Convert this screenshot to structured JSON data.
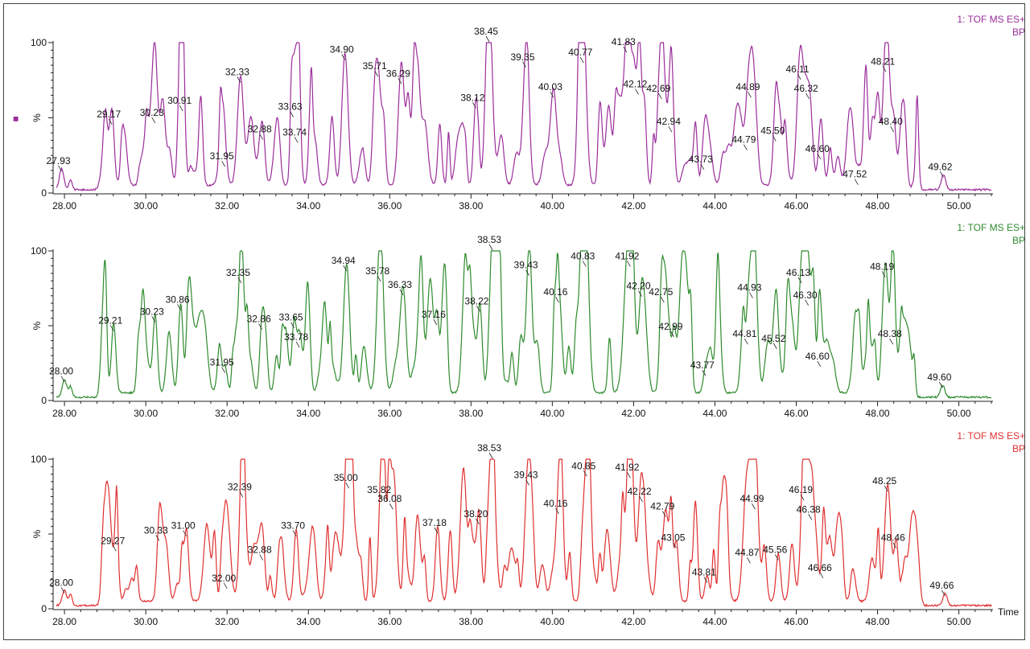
{
  "chart_data": [
    {
      "type": "line",
      "color": "#9b2e9b",
      "header": [
        "1: TOF MS ES+",
        "BP"
      ],
      "ylabel": "%",
      "xlim": [
        27.8,
        50.8
      ],
      "ylim": [
        0,
        100
      ],
      "yticks": [
        "0",
        "100"
      ],
      "xticks": [
        "28.00",
        "30.00",
        "32.00",
        "34.00",
        "36.00",
        "38.00",
        "40.00",
        "42.00",
        "44.00",
        "46.00",
        "48.00",
        "50.00"
      ],
      "xtick_values": [
        28,
        30,
        32,
        34,
        36,
        38,
        40,
        42,
        44,
        46,
        48,
        50
      ],
      "marker": "■",
      "peaks": [
        {
          "label": "27.93",
          "x": 27.93,
          "y": 14
        },
        {
          "label": "29.17",
          "x": 29.17,
          "y": 45
        },
        {
          "label": "30.23",
          "x": 30.23,
          "y": 46
        },
        {
          "label": "30.91",
          "x": 30.91,
          "y": 54
        },
        {
          "label": "31.95",
          "x": 31.95,
          "y": 17
        },
        {
          "label": "32.33",
          "x": 32.33,
          "y": 73
        },
        {
          "label": "32.88",
          "x": 32.88,
          "y": 35
        },
        {
          "label": "33.63",
          "x": 33.63,
          "y": 50
        },
        {
          "label": "33.74",
          "x": 33.74,
          "y": 33
        },
        {
          "label": "34.90",
          "x": 34.9,
          "y": 88
        },
        {
          "label": "35.71",
          "x": 35.71,
          "y": 77
        },
        {
          "label": "36.29",
          "x": 36.29,
          "y": 72
        },
        {
          "label": "38.12",
          "x": 38.12,
          "y": 56
        },
        {
          "label": "38.45",
          "x": 38.45,
          "y": 100
        },
        {
          "label": "39.35",
          "x": 39.35,
          "y": 83
        },
        {
          "label": "40.03",
          "x": 40.03,
          "y": 63
        },
        {
          "label": "40.77",
          "x": 40.77,
          "y": 86
        },
        {
          "label": "41.83",
          "x": 41.83,
          "y": 93
        },
        {
          "label": "42.12",
          "x": 42.12,
          "y": 65
        },
        {
          "label": "42.69",
          "x": 42.69,
          "y": 62
        },
        {
          "label": "42.94",
          "x": 42.94,
          "y": 40
        },
        {
          "label": "43.73",
          "x": 43.73,
          "y": 15
        },
        {
          "label": "44.79",
          "x": 44.79,
          "y": 28
        },
        {
          "label": "44.89",
          "x": 44.89,
          "y": 63
        },
        {
          "label": "45.50",
          "x": 45.5,
          "y": 34
        },
        {
          "label": "46.11",
          "x": 46.11,
          "y": 75
        },
        {
          "label": "46.32",
          "x": 46.32,
          "y": 62
        },
        {
          "label": "46.60",
          "x": 46.6,
          "y": 22
        },
        {
          "label": "47.52",
          "x": 47.52,
          "y": 5
        },
        {
          "label": "48.21",
          "x": 48.21,
          "y": 80
        },
        {
          "label": "48.40",
          "x": 48.4,
          "y": 40
        },
        {
          "label": "49.62",
          "x": 49.62,
          "y": 10
        }
      ]
    },
    {
      "type": "line",
      "color": "#2e8b2e",
      "header": [
        "1: TOF MS ES+",
        "BP"
      ],
      "ylabel": "%",
      "xlim": [
        27.8,
        50.8
      ],
      "ylim": [
        0,
        100
      ],
      "yticks": [
        "0",
        "100"
      ],
      "xticks": [
        "28.00",
        "30.00",
        "32.00",
        "34.00",
        "36.00",
        "38.00",
        "40.00",
        "42.00",
        "44.00",
        "46.00",
        "48.00",
        "50.00"
      ],
      "xtick_values": [
        28,
        30,
        32,
        34,
        36,
        38,
        40,
        42,
        44,
        46,
        48,
        50
      ],
      "peaks": [
        {
          "label": "28.00",
          "x": 28.0,
          "y": 12
        },
        {
          "label": "29.21",
          "x": 29.21,
          "y": 46
        },
        {
          "label": "30.23",
          "x": 30.23,
          "y": 52
        },
        {
          "label": "30.86",
          "x": 30.86,
          "y": 60
        },
        {
          "label": "31.95",
          "x": 31.95,
          "y": 18
        },
        {
          "label": "32.35",
          "x": 32.35,
          "y": 78
        },
        {
          "label": "32.86",
          "x": 32.86,
          "y": 47
        },
        {
          "label": "33.65",
          "x": 33.65,
          "y": 48
        },
        {
          "label": "33.78",
          "x": 33.78,
          "y": 35
        },
        {
          "label": "34.94",
          "x": 34.94,
          "y": 86
        },
        {
          "label": "35.78",
          "x": 35.78,
          "y": 79
        },
        {
          "label": "36.33",
          "x": 36.33,
          "y": 70
        },
        {
          "label": "37.16",
          "x": 37.16,
          "y": 50
        },
        {
          "label": "38.22",
          "x": 38.22,
          "y": 59
        },
        {
          "label": "38.53",
          "x": 38.53,
          "y": 100
        },
        {
          "label": "39.43",
          "x": 39.43,
          "y": 83
        },
        {
          "label": "40.16",
          "x": 40.16,
          "y": 65
        },
        {
          "label": "40.83",
          "x": 40.83,
          "y": 89
        },
        {
          "label": "41.92",
          "x": 41.92,
          "y": 89
        },
        {
          "label": "42.20",
          "x": 42.2,
          "y": 69
        },
        {
          "label": "42.75",
          "x": 42.75,
          "y": 65
        },
        {
          "label": "42.99",
          "x": 42.99,
          "y": 42
        },
        {
          "label": "43.77",
          "x": 43.77,
          "y": 16
        },
        {
          "label": "44.81",
          "x": 44.81,
          "y": 37
        },
        {
          "label": "44.93",
          "x": 44.93,
          "y": 68
        },
        {
          "label": "45.52",
          "x": 45.52,
          "y": 34
        },
        {
          "label": "46.13",
          "x": 46.13,
          "y": 78
        },
        {
          "label": "46.30",
          "x": 46.3,
          "y": 63
        },
        {
          "label": "46.60",
          "x": 46.6,
          "y": 22
        },
        {
          "label": "48.19",
          "x": 48.19,
          "y": 82
        },
        {
          "label": "48.38",
          "x": 48.38,
          "y": 37
        },
        {
          "label": "49.60",
          "x": 49.6,
          "y": 8
        }
      ]
    },
    {
      "type": "line",
      "color": "#e03030",
      "header": [
        "1: TOF MS ES+",
        "BP"
      ],
      "ylabel": "%",
      "xlabel": "Time",
      "xlim": [
        27.8,
        50.8
      ],
      "ylim": [
        0,
        100
      ],
      "yticks": [
        "0",
        "100"
      ],
      "xticks": [
        "28.00",
        "30.00",
        "32.00",
        "34.00",
        "36.00",
        "38.00",
        "40.00",
        "42.00",
        "44.00",
        "46.00",
        "48.00",
        "50.00"
      ],
      "xtick_values": [
        28,
        30,
        32,
        34,
        36,
        38,
        40,
        42,
        44,
        46,
        48,
        50
      ],
      "peaks": [
        {
          "label": "28.00",
          "x": 28.0,
          "y": 10
        },
        {
          "label": "29.27",
          "x": 29.27,
          "y": 38
        },
        {
          "label": "30.33",
          "x": 30.33,
          "y": 45
        },
        {
          "label": "31.00",
          "x": 31.0,
          "y": 48
        },
        {
          "label": "32.00",
          "x": 32.0,
          "y": 13
        },
        {
          "label": "32.39",
          "x": 32.39,
          "y": 74
        },
        {
          "label": "32.88",
          "x": 32.88,
          "y": 32
        },
        {
          "label": "33.70",
          "x": 33.7,
          "y": 48
        },
        {
          "label": "35.00",
          "x": 35.0,
          "y": 80
        },
        {
          "label": "35.82",
          "x": 35.82,
          "y": 72
        },
        {
          "label": "36.08",
          "x": 36.08,
          "y": 66
        },
        {
          "label": "37.18",
          "x": 37.18,
          "y": 50
        },
        {
          "label": "38.20",
          "x": 38.2,
          "y": 56
        },
        {
          "label": "38.53",
          "x": 38.53,
          "y": 100
        },
        {
          "label": "39.43",
          "x": 39.43,
          "y": 82
        },
        {
          "label": "40.16",
          "x": 40.16,
          "y": 63
        },
        {
          "label": "40.85",
          "x": 40.85,
          "y": 88
        },
        {
          "label": "41.92",
          "x": 41.92,
          "y": 87
        },
        {
          "label": "42.22",
          "x": 42.22,
          "y": 71
        },
        {
          "label": "42.79",
          "x": 42.79,
          "y": 61
        },
        {
          "label": "43.05",
          "x": 43.05,
          "y": 40
        },
        {
          "label": "43.81",
          "x": 43.81,
          "y": 17
        },
        {
          "label": "44.87",
          "x": 44.87,
          "y": 30
        },
        {
          "label": "44.99",
          "x": 44.99,
          "y": 66
        },
        {
          "label": "45.56",
          "x": 45.56,
          "y": 32
        },
        {
          "label": "46.19",
          "x": 46.19,
          "y": 72
        },
        {
          "label": "46.38",
          "x": 46.38,
          "y": 59
        },
        {
          "label": "46.66",
          "x": 46.66,
          "y": 20
        },
        {
          "label": "48.25",
          "x": 48.25,
          "y": 78
        },
        {
          "label": "48.46",
          "x": 48.46,
          "y": 40
        },
        {
          "label": "49.66",
          "x": 49.66,
          "y": 8
        }
      ]
    }
  ]
}
